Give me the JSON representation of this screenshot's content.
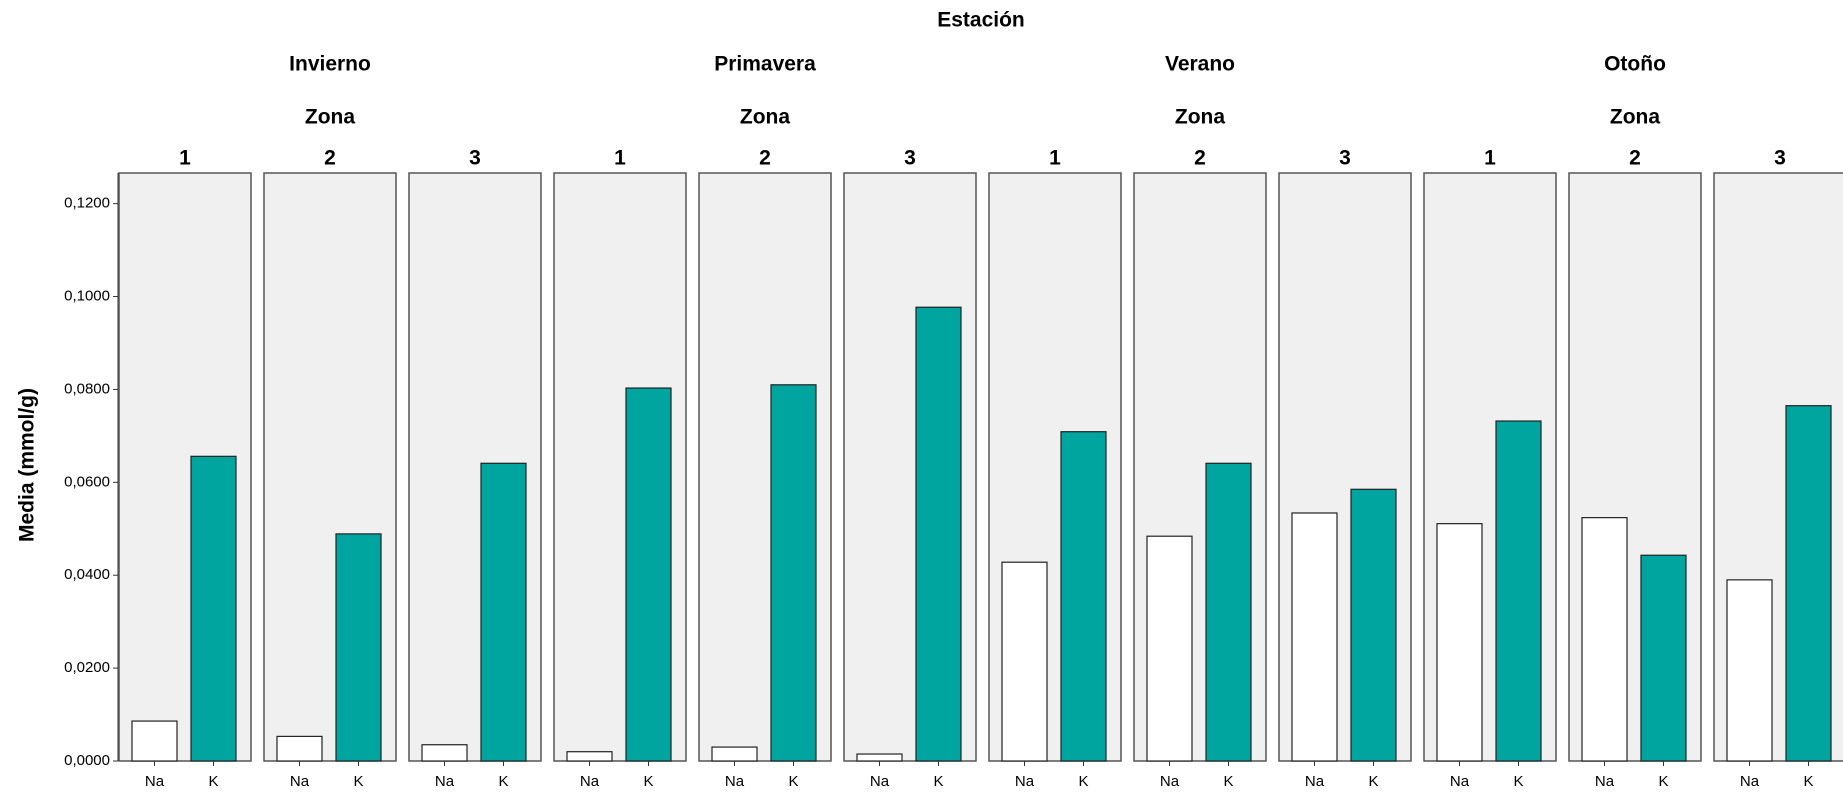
{
  "chart_data": {
    "type": "bar",
    "title": "Estación",
    "y_label": "Media (mmol/g)",
    "categories": [
      "Na",
      "K"
    ],
    "colors": [
      "#ffffff",
      "#00a5a0"
    ],
    "ylim": [
      0,
      0.1266
    ],
    "yticks": [
      {
        "value": 0,
        "label": "0,0000"
      },
      {
        "value": 0.02,
        "label": "0,0200"
      },
      {
        "value": 0.04,
        "label": "0,0400"
      },
      {
        "value": 0.06,
        "label": "0,0600"
      },
      {
        "value": 0.08,
        "label": "0,0800"
      },
      {
        "value": 0.1,
        "label": "0,1000"
      },
      {
        "value": 0.12,
        "label": "0,1200"
      }
    ],
    "seasons": [
      {
        "name": "Invierno",
        "facet_label": "Zona",
        "panels": [
          {
            "zone": "1",
            "values": [
              0.0086,
              0.0656
            ]
          },
          {
            "zone": "2",
            "values": [
              0.0053,
              0.0489
            ]
          },
          {
            "zone": "3",
            "values": [
              0.0035,
              0.0641
            ]
          }
        ]
      },
      {
        "name": "Primavera",
        "facet_label": "Zona",
        "panels": [
          {
            "zone": "1",
            "values": [
              0.002,
              0.0803
            ]
          },
          {
            "zone": "2",
            "values": [
              0.003,
              0.081
            ]
          },
          {
            "zone": "3",
            "values": [
              0.0015,
              0.0977
            ]
          }
        ]
      },
      {
        "name": "Verano",
        "facet_label": "Zona",
        "panels": [
          {
            "zone": "1",
            "values": [
              0.0428,
              0.0709
            ]
          },
          {
            "zone": "2",
            "values": [
              0.0484,
              0.0641
            ]
          },
          {
            "zone": "3",
            "values": [
              0.0534,
              0.0585
            ]
          }
        ]
      },
      {
        "name": "Otoño",
        "facet_label": "Zona",
        "panels": [
          {
            "zone": "1",
            "values": [
              0.0511,
              0.0732
            ]
          },
          {
            "zone": "2",
            "values": [
              0.0524,
              0.0443
            ]
          },
          {
            "zone": "3",
            "values": [
              0.039,
              0.0765
            ]
          }
        ]
      }
    ]
  }
}
